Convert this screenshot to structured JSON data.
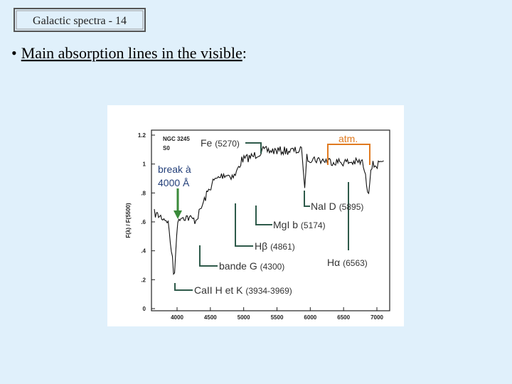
{
  "header": {
    "title": "Galactic spectra - 14"
  },
  "bullet": {
    "marker": "•",
    "text": "Main absorption lines in the visible",
    "suffix": ":"
  },
  "figure": {
    "object": "NGC 3245",
    "class": "S0",
    "y_axis_label": "F(λ) / F(5500)",
    "yticks": [
      "1.2",
      "1",
      ".8",
      ".6",
      ".4",
      ".2",
      "0"
    ],
    "xticks": [
      "4000",
      "4500",
      "5000",
      "5500",
      "6000",
      "6500",
      "7000"
    ]
  },
  "annotations": {
    "fe": {
      "name": "Fe",
      "wavelength": "(5270)"
    },
    "atm": {
      "name": "atm."
    },
    "break": {
      "line1": "break à",
      "line2": "4000 Å"
    },
    "nad": {
      "name": "NaI D",
      "wavelength": "(5895)"
    },
    "mgb": {
      "name": "MgI b",
      "wavelength": "(5174)"
    },
    "hb": {
      "name": "Hβ",
      "wavelength": "(4861)"
    },
    "gband": {
      "name": "bande G",
      "wavelength": "(4300)"
    },
    "hk": {
      "name": "CaII H et K",
      "wavelength": "(3934-3969)"
    },
    "ha": {
      "name": "Hα",
      "wavelength": "(6563)"
    }
  }
}
